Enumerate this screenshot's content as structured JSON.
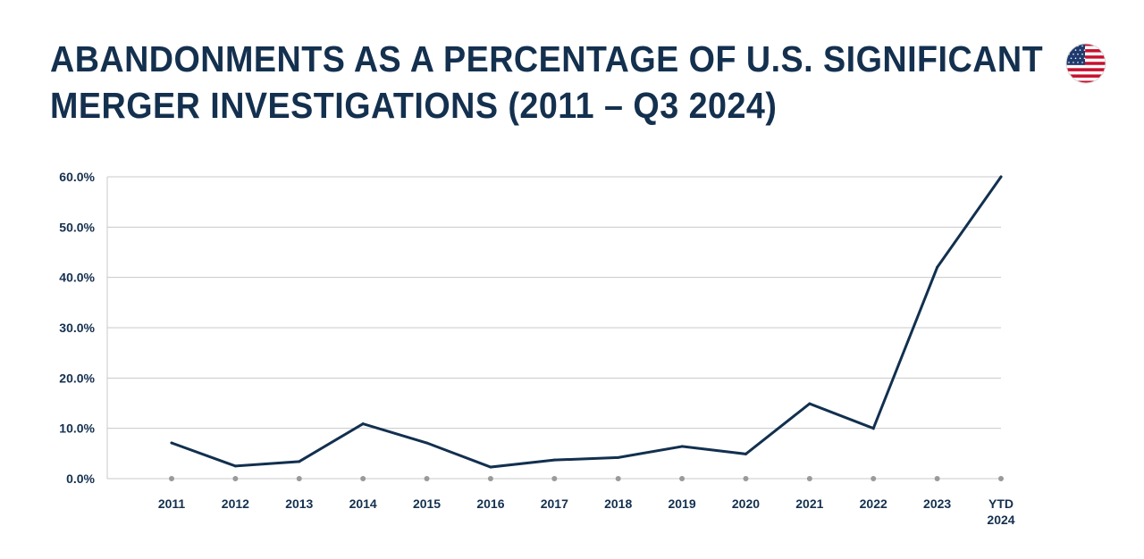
{
  "title": {
    "line1": "ABANDONMENTS AS A PERCENTAGE OF U.S. SIGNIFICANT",
    "line2": "MERGER INVESTIGATIONS (2011 – Q3 2024)"
  },
  "flag": {
    "icon": "us-flag-icon",
    "colors": {
      "red": "#c8102e",
      "blue": "#1f3a6e",
      "white": "#ffffff"
    }
  },
  "colors": {
    "line": "#12304f",
    "text": "#14304f",
    "grid": "#c8c8c8",
    "marker": "#9a9a9a"
  },
  "chart_data": {
    "type": "line",
    "title": "ABANDONMENTS AS A PERCENTAGE OF U.S. SIGNIFICANT MERGER INVESTIGATIONS (2011 – Q3 2024)",
    "xlabel": "",
    "ylabel": "",
    "categories": [
      "2011",
      "2012",
      "2013",
      "2014",
      "2015",
      "2016",
      "2017",
      "2018",
      "2019",
      "2020",
      "2021",
      "2022",
      "2023",
      "YTD 2024"
    ],
    "category_lines": [
      [
        "2011"
      ],
      [
        "2012"
      ],
      [
        "2013"
      ],
      [
        "2014"
      ],
      [
        "2015"
      ],
      [
        "2016"
      ],
      [
        "2017"
      ],
      [
        "2018"
      ],
      [
        "2019"
      ],
      [
        "2020"
      ],
      [
        "2021"
      ],
      [
        "2022"
      ],
      [
        "2023"
      ],
      [
        "YTD",
        "2024"
      ]
    ],
    "series": [
      {
        "values": [
          7.1,
          2.5,
          3.4,
          10.9,
          7.1,
          2.3,
          3.7,
          4.2,
          6.4,
          4.9,
          14.9,
          10.0,
          42.0,
          60.0
        ]
      }
    ],
    "ylim": [
      0,
      60
    ],
    "yticks": [
      0,
      10,
      20,
      30,
      40,
      50,
      60
    ],
    "ytick_labels": [
      "0.0%",
      "10.0%",
      "20.0%",
      "30.0%",
      "40.0%",
      "50.0%",
      "60.0%"
    ],
    "grid": true,
    "legend": "none"
  }
}
